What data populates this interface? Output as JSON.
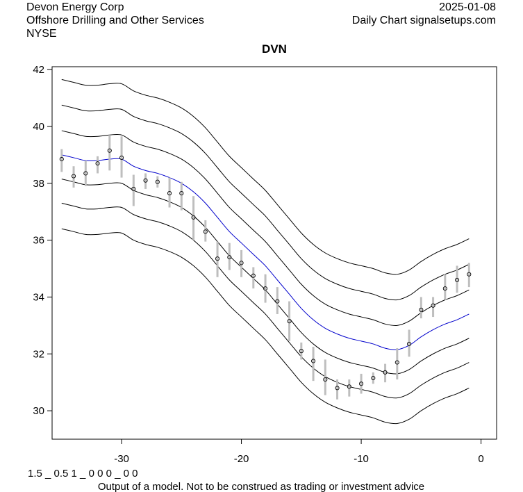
{
  "header": {
    "company": "Devon Energy Corp",
    "industry": "Offshore Drilling and Other Services",
    "exchange": "NYSE",
    "date": "2025-01-08",
    "source": "Daily Chart signalsetups.com"
  },
  "footer": {
    "code": "1.5 _ 0.5 1 _ 0 0 0 _ 0 0",
    "disclaimer": "Output of a model. Not to be construed as trading or investment advice"
  },
  "chart_data": {
    "type": "line",
    "title": "DVN",
    "xlabel": "",
    "ylabel": "",
    "xlim": [
      -35.8,
      1.3
    ],
    "ylim": [
      29.0,
      42.1
    ],
    "x_ticks": [
      -30,
      -20,
      -10,
      0
    ],
    "y_ticks": [
      30,
      32,
      34,
      36,
      38,
      40,
      42
    ],
    "grid": false,
    "band_x": [
      -35,
      -34,
      -33,
      -32,
      -31,
      -30,
      -29,
      -28,
      -27,
      -26,
      -25,
      -24,
      -23,
      -22,
      -21,
      -20,
      -19,
      -18,
      -17,
      -16,
      -15,
      -14,
      -13,
      -12,
      -11,
      -10,
      -9,
      -8,
      -7,
      -6,
      -5,
      -4,
      -3,
      -2,
      -1
    ],
    "center_line": {
      "name": "center",
      "color": "#0000cc",
      "values": [
        39.0,
        38.9,
        38.8,
        38.8,
        38.85,
        38.85,
        38.6,
        38.45,
        38.35,
        38.2,
        38.0,
        37.7,
        37.3,
        36.8,
        36.3,
        35.9,
        35.5,
        35.1,
        34.6,
        34.1,
        33.6,
        33.2,
        32.9,
        32.7,
        32.55,
        32.45,
        32.35,
        32.2,
        32.15,
        32.3,
        32.6,
        32.85,
        33.05,
        33.2,
        33.4
      ]
    },
    "band_offsets": [
      -2.6,
      -1.7,
      -0.85,
      0.85,
      1.75,
      2.65
    ],
    "band_color": "#000000",
    "ohlc": [
      {
        "x": -35,
        "low": 38.4,
        "high": 39.2,
        "close": 38.85
      },
      {
        "x": -34,
        "low": 37.85,
        "high": 38.6,
        "close": 38.25
      },
      {
        "x": -33,
        "low": 37.9,
        "high": 38.8,
        "close": 38.35
      },
      {
        "x": -32,
        "low": 38.35,
        "high": 38.95,
        "close": 38.7
      },
      {
        "x": -31,
        "low": 38.45,
        "high": 39.7,
        "close": 39.15
      },
      {
        "x": -30,
        "low": 38.2,
        "high": 39.65,
        "close": 38.9
      },
      {
        "x": -29,
        "low": 37.2,
        "high": 38.3,
        "close": 37.8
      },
      {
        "x": -28,
        "low": 37.8,
        "high": 38.35,
        "close": 38.1
      },
      {
        "x": -27,
        "low": 37.85,
        "high": 38.25,
        "close": 38.05
      },
      {
        "x": -26,
        "low": 37.15,
        "high": 38.2,
        "close": 37.65
      },
      {
        "x": -25,
        "low": 37.05,
        "high": 38.05,
        "close": 37.65
      },
      {
        "x": -24,
        "low": 36.0,
        "high": 37.55,
        "close": 36.8
      },
      {
        "x": -23,
        "low": 35.95,
        "high": 36.7,
        "close": 36.3
      },
      {
        "x": -22,
        "low": 34.7,
        "high": 35.95,
        "close": 35.35
      },
      {
        "x": -21,
        "low": 34.95,
        "high": 35.9,
        "close": 35.4
      },
      {
        "x": -20,
        "low": 34.7,
        "high": 35.65,
        "close": 35.2
      },
      {
        "x": -19,
        "low": 34.3,
        "high": 35.05,
        "close": 34.75
      },
      {
        "x": -18,
        "low": 33.8,
        "high": 34.8,
        "close": 34.3
      },
      {
        "x": -17,
        "low": 33.4,
        "high": 34.35,
        "close": 33.85
      },
      {
        "x": -16,
        "low": 32.45,
        "high": 33.85,
        "close": 33.15
      },
      {
        "x": -15,
        "low": 31.8,
        "high": 32.4,
        "close": 32.1
      },
      {
        "x": -14,
        "low": 31.05,
        "high": 32.25,
        "close": 31.75
      },
      {
        "x": -13,
        "low": 30.55,
        "high": 31.8,
        "close": 31.1
      },
      {
        "x": -12,
        "low": 30.4,
        "high": 31.1,
        "close": 30.8
      },
      {
        "x": -11,
        "low": 30.5,
        "high": 31.1,
        "close": 30.85
      },
      {
        "x": -10,
        "low": 30.6,
        "high": 31.3,
        "close": 30.95
      },
      {
        "x": -9,
        "low": 30.95,
        "high": 31.35,
        "close": 31.15
      },
      {
        "x": -8,
        "low": 31.0,
        "high": 31.65,
        "close": 31.35
      },
      {
        "x": -7,
        "low": 31.1,
        "high": 32.2,
        "close": 31.7
      },
      {
        "x": -6,
        "low": 31.9,
        "high": 32.85,
        "close": 32.35
      },
      {
        "x": -5,
        "low": 33.25,
        "high": 34.0,
        "close": 33.55
      },
      {
        "x": -4,
        "low": 33.3,
        "high": 34.0,
        "close": 33.7
      },
      {
        "x": -3,
        "low": 33.9,
        "high": 34.8,
        "close": 34.3
      },
      {
        "x": -2,
        "low": 34.15,
        "high": 35.1,
        "close": 34.6
      },
      {
        "x": -1,
        "low": 34.35,
        "high": 35.2,
        "close": 34.8
      }
    ]
  }
}
